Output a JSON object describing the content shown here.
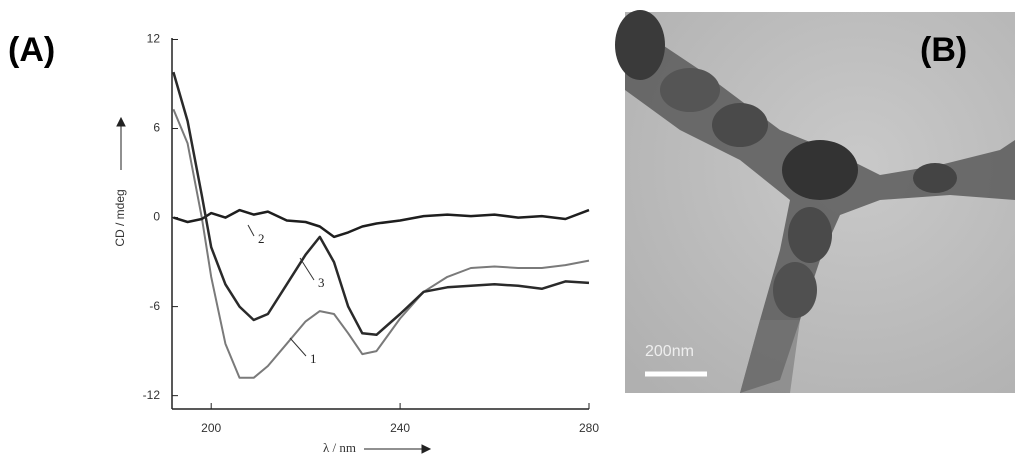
{
  "chart_data": {
    "type": "line",
    "panel_label": "(A)",
    "x_label": "λ / nm",
    "y_label": "CD / mdeg",
    "x": [
      192,
      195,
      198,
      200,
      203,
      206,
      209,
      212,
      216,
      220,
      223,
      226,
      229,
      232,
      235,
      240,
      245,
      250,
      255,
      260,
      265,
      270,
      275,
      280
    ],
    "series": [
      {
        "name": "1",
        "color": "#7a7a7a",
        "values": [
          7.3,
          5,
          0,
          -4,
          -8.5,
          -10.8,
          -10.8,
          -10,
          -8.5,
          -7,
          -6.3,
          -6.5,
          -7.8,
          -9.2,
          -9,
          -6.8,
          -5,
          -4,
          -3.4,
          -3.3,
          -3.4,
          -3.4,
          -3.2,
          -2.9
        ]
      },
      {
        "name": "2",
        "color": "#1e1e1e",
        "values": [
          0,
          -0.3,
          -0.1,
          0.3,
          0,
          0.5,
          0.2,
          0.4,
          -0.2,
          -0.3,
          -0.6,
          -1.3,
          -1.0,
          -0.6,
          -0.4,
          -0.2,
          0.1,
          0.2,
          0.1,
          0.2,
          0,
          0.1,
          -0.1,
          0.5
        ]
      },
      {
        "name": "3",
        "color": "#2a2a2a",
        "values": [
          9.8,
          6.5,
          1.5,
          -2,
          -4.5,
          -6,
          -6.9,
          -6.5,
          -4.5,
          -2.5,
          -1.3,
          -3,
          -6,
          -7.8,
          -7.9,
          -6.5,
          -5,
          -4.7,
          -4.6,
          -4.5,
          -4.6,
          -4.8,
          -4.3,
          -4.4
        ]
      }
    ],
    "xlim": [
      191.7,
      280
    ],
    "xticks": [
      200,
      240,
      280
    ],
    "ylim": [
      -12.9,
      12.1
    ],
    "yticks": [
      -12,
      -6,
      0,
      6,
      12
    ],
    "grid": false
  },
  "image": {
    "panel_label": "(B)",
    "scale_bar": "200nm"
  }
}
